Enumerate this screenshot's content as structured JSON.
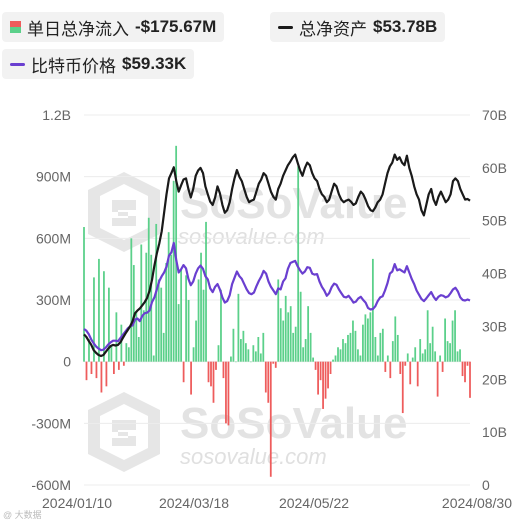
{
  "legend": {
    "flow_label": "单日总净流入",
    "flow_value": "-$175.67M",
    "assets_label": "总净资产",
    "assets_value": "$53.78B",
    "price_label": "比特币价格",
    "price_value": "$59.33K"
  },
  "watermark": {
    "brand": "SoSoValue",
    "url": "sosovalue.com",
    "corner": "@ 大数据"
  },
  "colors": {
    "inflow": "#5bd08a",
    "outflow": "#ee5c5c",
    "assets_line": "#1a1a1a",
    "price_line": "#6a3fd0",
    "legend_bg": "#f2f2f2"
  },
  "chart_data": {
    "type": "bar",
    "x_tick_labels": [
      "2024/01/10",
      "2024/03/18",
      "2024/05/22",
      "2024/08/30"
    ],
    "left_axis": {
      "ylim": [
        -600,
        1200
      ],
      "unit": "M USD",
      "tick_labels": [
        "-600M",
        "-300M",
        "0",
        "300M",
        "600M",
        "900M",
        "1.2B"
      ],
      "tick_values": [
        -600,
        -300,
        0,
        300,
        600,
        900,
        1200
      ]
    },
    "right_axis": {
      "ylim": [
        0,
        70
      ],
      "unit": "B USD",
      "tick_labels": [
        "0",
        "10B",
        "20B",
        "30B",
        "40B",
        "50B",
        "60B",
        "70B"
      ],
      "tick_values": [
        0,
        10,
        20,
        30,
        40,
        50,
        60,
        70
      ]
    },
    "grid": "horizontal",
    "series": [
      {
        "name": "单日总净流入",
        "type": "bar",
        "axis": "left",
        "values": [
          655,
          -90,
          110,
          -60,
          410,
          -80,
          500,
          -150,
          440,
          -120,
          360,
          80,
          -60,
          240,
          -40,
          180,
          -20,
          90,
          70,
          600,
          470,
          240,
          120,
          570,
          250,
          530,
          700,
          520,
          30,
          670,
          400,
          360,
          140,
          480,
          630,
          520,
          880,
          1050,
          280,
          450,
          -100,
          420,
          300,
          -160,
          70,
          200,
          400,
          530,
          350,
          680,
          -100,
          -120,
          -200,
          -40,
          80,
          350,
          -80,
          -300,
          -310,
          25,
          160,
          0,
          330,
          110,
          150,
          90,
          60,
          0,
          80,
          50,
          120,
          40,
          140,
          -150,
          -200,
          -560,
          -10,
          -30,
          400,
          260,
          200,
          320,
          240,
          270,
          140,
          170,
          950,
          340,
          70,
          110,
          270,
          140,
          20,
          -40,
          -160,
          -90,
          -230,
          -180,
          -130,
          -60,
          10,
          30,
          70,
          60,
          110,
          90,
          130,
          140,
          200,
          150,
          60,
          30,
          180,
          230,
          210,
          240,
          500,
          120,
          30,
          140,
          160,
          -50,
          30,
          -80,
          100,
          220,
          130,
          -60,
          -250,
          -20,
          40,
          -110,
          20,
          70,
          -120,
          110,
          40,
          60,
          250,
          90,
          170,
          50,
          -170,
          30,
          -50,
          210,
          100,
          90,
          200,
          250,
          50,
          60,
          -70,
          -100,
          -20,
          -176
        ]
      },
      {
        "name": "总净资产",
        "type": "line",
        "axis": "right",
        "values": [
          28.5,
          28.0,
          27.2,
          26.5,
          25.5,
          25.0,
          24.6,
          24.4,
          24.6,
          25.2,
          25.8,
          26.3,
          26.5,
          26.4,
          26.5,
          27.0,
          27.8,
          28.6,
          29.3,
          30.0,
          31.0,
          32.5,
          33.0,
          33.4,
          34.0,
          34.6,
          35.4,
          36.7,
          38.8,
          41.5,
          43.8,
          45.7,
          48.0,
          51.5,
          55.0,
          58.0,
          59.0,
          60.1,
          57.5,
          55.5,
          56.7,
          57.8,
          58.0,
          56.0,
          54.4,
          56.0,
          58.5,
          59.5,
          60.0,
          59.0,
          56.5,
          55.0,
          53.6,
          53.0,
          54.4,
          56.5,
          55.2,
          53.0,
          51.5,
          52.0,
          53.5,
          56.0,
          58.0,
          59.6,
          58.3,
          57.5,
          56.0,
          54.5,
          53.5,
          53.8,
          54.0,
          55.5,
          57.0,
          57.8,
          59.0,
          58.5,
          57.0,
          55.5,
          54.5,
          54.0,
          56.0,
          57.0,
          58.5,
          59.5,
          60.5,
          61.2,
          62.0,
          62.5,
          61.0,
          59.5,
          58.5,
          60.0,
          61.0,
          60.5,
          59.0,
          58.0,
          57.5,
          56.0,
          55.0,
          54.5,
          53.5,
          54.0,
          55.5,
          57.0,
          56.5,
          55.0,
          54.0,
          53.5,
          53.8,
          54.0,
          53.6,
          53.0,
          53.3,
          54.5,
          55.5,
          55.0,
          54.0,
          52.8,
          52.0,
          51.8,
          52.5,
          53.5,
          54.0,
          55.0,
          57.0,
          59.0,
          60.3,
          61.0,
          62.5,
          61.5,
          62.0,
          61.0,
          60.5,
          62.3,
          60.0,
          58.5,
          56.5,
          55.0,
          54.0,
          52.0,
          51.0,
          53.0,
          55.0,
          56.0,
          54.0,
          53.0,
          54.5,
          55.5,
          54.5,
          53.5,
          54.0,
          55.0,
          57.5,
          58.0,
          57.5,
          56.0,
          55.0,
          54.0,
          54.1,
          53.78
        ]
      },
      {
        "name": "比特币价格",
        "type": "line",
        "axis": "right",
        "values": [
          29.5,
          29.2,
          28.5,
          27.5,
          26.8,
          26.2,
          25.8,
          25.5,
          25.6,
          26.0,
          26.6,
          27.0,
          27.3,
          27.3,
          27.2,
          27.8,
          28.4,
          29.0,
          29.6,
          30.0,
          30.2,
          31.3,
          31.5,
          31.0,
          32.0,
          32.5,
          32.6,
          33.0,
          34.6,
          35.5,
          37.0,
          38.6,
          39.5,
          40.2,
          41.3,
          43.4,
          44.0,
          45.8,
          42.5,
          40.2,
          40.8,
          41.6,
          41.0,
          39.0,
          37.8,
          38.5,
          40.0,
          41.0,
          41.5,
          40.9,
          39.5,
          38.9,
          37.2,
          36.5,
          37.5,
          38.0,
          37.0,
          35.5,
          34.5,
          34.8,
          35.9,
          38.0,
          39.2,
          40.4,
          39.5,
          39.0,
          38.0,
          37.0,
          36.3,
          36.1,
          36.4,
          37.6,
          38.6,
          39.4,
          40.5,
          40.0,
          38.5,
          37.5,
          36.8,
          36.1,
          37.2,
          37.0,
          38.5,
          39.1,
          40.9,
          42.0,
          42.2,
          42.4,
          41.4,
          40.6,
          40.0,
          40.4,
          41.2,
          41.1,
          40.0,
          39.8,
          39.9,
          38.5,
          37.5,
          36.8,
          35.8,
          36.3,
          37.4,
          38.1,
          37.9,
          37.0,
          36.3,
          35.6,
          35.5,
          35.8,
          35.2,
          34.5,
          34.7,
          35.3,
          35.6,
          35.0,
          34.5,
          33.5,
          33.2,
          33.3,
          33.8,
          34.8,
          35.5,
          35.7,
          36.8,
          38.2,
          40.0,
          40.4,
          41.8,
          40.6,
          40.8,
          40.5,
          40.2,
          41.4,
          40.2,
          39.0,
          38.0,
          36.8,
          36.0,
          35.2,
          34.8,
          35.3,
          35.9,
          36.5,
          35.6,
          35.0,
          35.6,
          35.9,
          35.8,
          35.5,
          35.7,
          36.3,
          37.0,
          37.3,
          36.6,
          35.5,
          35.0,
          34.9,
          35.1,
          34.9
        ]
      }
    ]
  }
}
